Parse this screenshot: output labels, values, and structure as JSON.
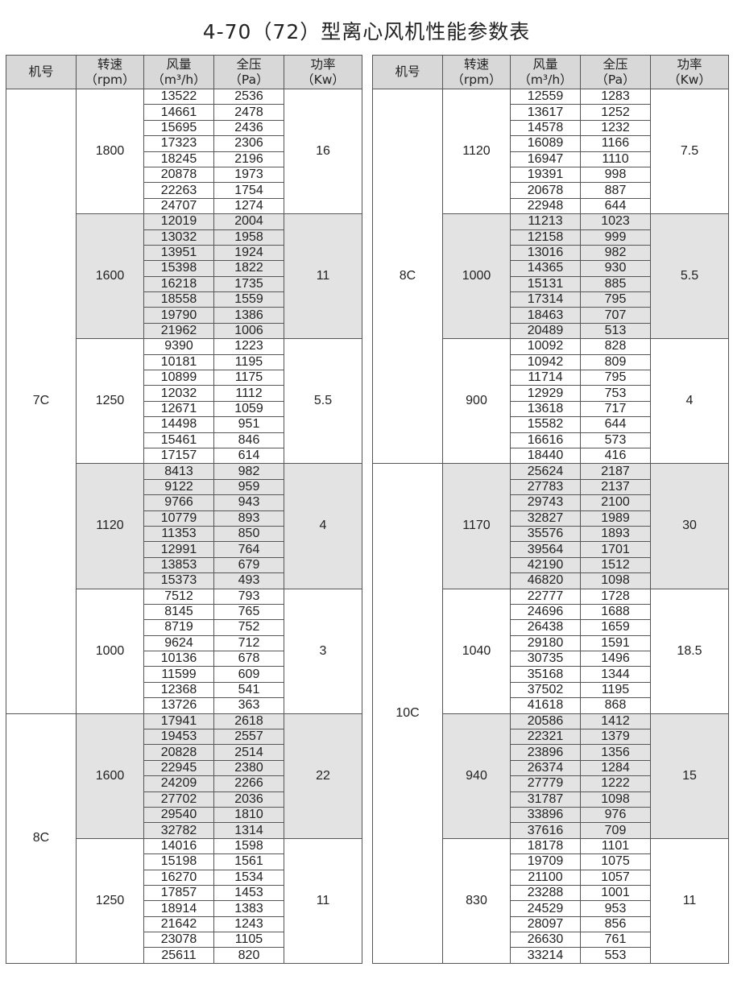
{
  "title": "4-70（72）型离心风机性能参数表",
  "headers": {
    "model": "机号",
    "speed": "转速",
    "speed_unit": "（rpm）",
    "flow": "风量",
    "flow_unit": "（m³/h）",
    "pressure": "全压",
    "pressure_unit": "（Pa）",
    "power": "功率",
    "power_unit": "（Kw）"
  },
  "colors": {
    "header_bg": "#d8d8d8",
    "shaded_bg": "#e3e3e3"
  },
  "left_table": [
    {
      "model": "7C",
      "speeds": [
        {
          "rpm": "1800",
          "power": "16",
          "shaded": false,
          "rows": [
            [
              "13522",
              "2536"
            ],
            [
              "14661",
              "2478"
            ],
            [
              "15695",
              "2436"
            ],
            [
              "17323",
              "2306"
            ],
            [
              "18245",
              "2196"
            ],
            [
              "20878",
              "1973"
            ],
            [
              "22263",
              "1754"
            ],
            [
              "24707",
              "1274"
            ]
          ]
        },
        {
          "rpm": "1600",
          "power": "11",
          "shaded": true,
          "rows": [
            [
              "12019",
              "2004"
            ],
            [
              "13032",
              "1958"
            ],
            [
              "13951",
              "1924"
            ],
            [
              "15398",
              "1822"
            ],
            [
              "16218",
              "1735"
            ],
            [
              "18558",
              "1559"
            ],
            [
              "19790",
              "1386"
            ],
            [
              "21962",
              "1006"
            ]
          ]
        },
        {
          "rpm": "1250",
          "power": "5.5",
          "shaded": false,
          "rows": [
            [
              "9390",
              "1223"
            ],
            [
              "10181",
              "1195"
            ],
            [
              "10899",
              "1175"
            ],
            [
              "12032",
              "1112"
            ],
            [
              "12671",
              "1059"
            ],
            [
              "14498",
              "951"
            ],
            [
              "15461",
              "846"
            ],
            [
              "17157",
              "614"
            ]
          ]
        },
        {
          "rpm": "1120",
          "power": "4",
          "shaded": true,
          "rows": [
            [
              "8413",
              "982"
            ],
            [
              "9122",
              "959"
            ],
            [
              "9766",
              "943"
            ],
            [
              "10779",
              "893"
            ],
            [
              "11353",
              "850"
            ],
            [
              "12991",
              "764"
            ],
            [
              "13853",
              "679"
            ],
            [
              "15373",
              "493"
            ]
          ]
        },
        {
          "rpm": "1000",
          "power": "3",
          "shaded": false,
          "rows": [
            [
              "7512",
              "793"
            ],
            [
              "8145",
              "765"
            ],
            [
              "8719",
              "752"
            ],
            [
              "9624",
              "712"
            ],
            [
              "10136",
              "678"
            ],
            [
              "11599",
              "609"
            ],
            [
              "12368",
              "541"
            ],
            [
              "13726",
              "363"
            ]
          ]
        }
      ]
    },
    {
      "model": "8C",
      "speeds": [
        {
          "rpm": "1600",
          "power": "22",
          "shaded": true,
          "rows": [
            [
              "17941",
              "2618"
            ],
            [
              "19453",
              "2557"
            ],
            [
              "20828",
              "2514"
            ],
            [
              "22945",
              "2380"
            ],
            [
              "24209",
              "2266"
            ],
            [
              "27702",
              "2036"
            ],
            [
              "29540",
              "1810"
            ],
            [
              "32782",
              "1314"
            ]
          ]
        },
        {
          "rpm": "1250",
          "power": "11",
          "shaded": false,
          "rows": [
            [
              "14016",
              "1598"
            ],
            [
              "15198",
              "1561"
            ],
            [
              "16270",
              "1534"
            ],
            [
              "17857",
              "1453"
            ],
            [
              "18914",
              "1383"
            ],
            [
              "21642",
              "1243"
            ],
            [
              "23078",
              "1105"
            ],
            [
              "25611",
              "820"
            ]
          ]
        }
      ]
    }
  ],
  "right_table": [
    {
      "model": "8C",
      "speeds": [
        {
          "rpm": "1120",
          "power": "7.5",
          "shaded": false,
          "rows": [
            [
              "12559",
              "1283"
            ],
            [
              "13617",
              "1252"
            ],
            [
              "14578",
              "1232"
            ],
            [
              "16089",
              "1166"
            ],
            [
              "16947",
              "1110"
            ],
            [
              "19391",
              "998"
            ],
            [
              "20678",
              "887"
            ],
            [
              "22948",
              "644"
            ]
          ]
        },
        {
          "rpm": "1000",
          "power": "5.5",
          "shaded": true,
          "rows": [
            [
              "11213",
              "1023"
            ],
            [
              "12158",
              "999"
            ],
            [
              "13016",
              "982"
            ],
            [
              "14365",
              "930"
            ],
            [
              "15131",
              "885"
            ],
            [
              "17314",
              "795"
            ],
            [
              "18463",
              "707"
            ],
            [
              "20489",
              "513"
            ]
          ]
        },
        {
          "rpm": "900",
          "power": "4",
          "shaded": false,
          "rows": [
            [
              "10092",
              "828"
            ],
            [
              "10942",
              "809"
            ],
            [
              "11714",
              "795"
            ],
            [
              "12929",
              "753"
            ],
            [
              "13618",
              "717"
            ],
            [
              "15582",
              "644"
            ],
            [
              "16616",
              "573"
            ],
            [
              "18440",
              "416"
            ]
          ]
        }
      ]
    },
    {
      "model": "10C",
      "speeds": [
        {
          "rpm": "1170",
          "power": "30",
          "shaded": true,
          "rows": [
            [
              "25624",
              "2187"
            ],
            [
              "27783",
              "2137"
            ],
            [
              "29743",
              "2100"
            ],
            [
              "32827",
              "1989"
            ],
            [
              "35576",
              "1893"
            ],
            [
              "39564",
              "1701"
            ],
            [
              "42190",
              "1512"
            ],
            [
              "46820",
              "1098"
            ]
          ]
        },
        {
          "rpm": "1040",
          "power": "18.5",
          "shaded": false,
          "rows": [
            [
              "22777",
              "1728"
            ],
            [
              "24696",
              "1688"
            ],
            [
              "26438",
              "1659"
            ],
            [
              "29180",
              "1591"
            ],
            [
              "30735",
              "1496"
            ],
            [
              "35168",
              "1344"
            ],
            [
              "37502",
              "1195"
            ],
            [
              "41618",
              "868"
            ]
          ]
        },
        {
          "rpm": "940",
          "power": "15",
          "shaded": true,
          "rows": [
            [
              "20586",
              "1412"
            ],
            [
              "22321",
              "1379"
            ],
            [
              "23896",
              "1356"
            ],
            [
              "26374",
              "1284"
            ],
            [
              "27779",
              "1222"
            ],
            [
              "31787",
              "1098"
            ],
            [
              "33896",
              "976"
            ],
            [
              "37616",
              "709"
            ]
          ]
        },
        {
          "rpm": "830",
          "power": "11",
          "shaded": false,
          "rows": [
            [
              "18178",
              "1101"
            ],
            [
              "19709",
              "1075"
            ],
            [
              "21100",
              "1057"
            ],
            [
              "23288",
              "1001"
            ],
            [
              "24529",
              "953"
            ],
            [
              "28097",
              "856"
            ],
            [
              "26630",
              "761"
            ],
            [
              "33214",
              "553"
            ]
          ]
        }
      ]
    }
  ]
}
